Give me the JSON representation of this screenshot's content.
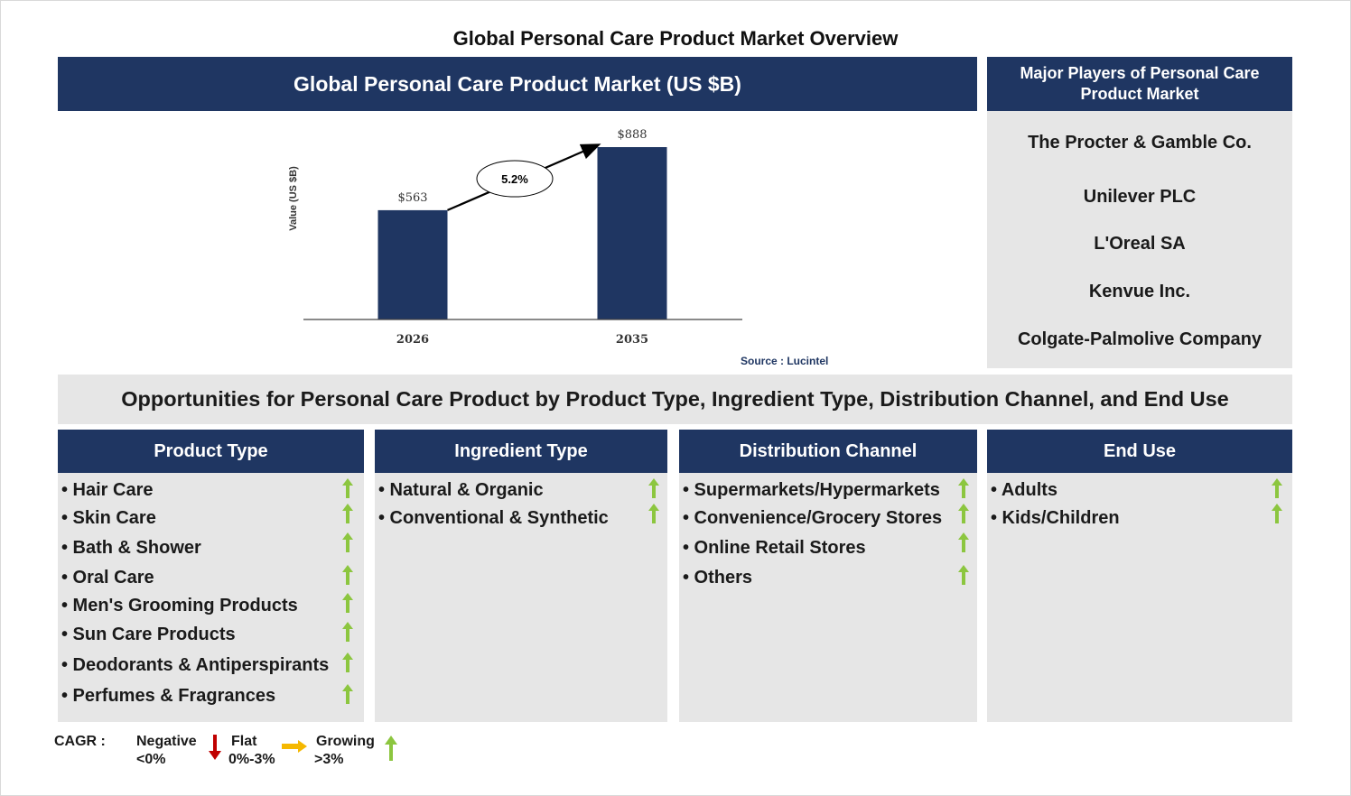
{
  "title": "Global Personal Care Product Market Overview",
  "chart_header": "Global Personal Care Product Market (US $B)",
  "chart_data": {
    "type": "bar",
    "categories": [
      "2026",
      "2035"
    ],
    "values": [
      563,
      888
    ],
    "value_labels": [
      "$563",
      "$888"
    ],
    "ylabel": "Value (US $B)",
    "cagr_label": "5.2%",
    "bar_color": "#1f3662",
    "source": "Source : Lucintel"
  },
  "players": {
    "header": "Major Players of Personal Care Product Market",
    "items": [
      "The Procter & Gamble Co.",
      "Unilever PLC",
      "L'Oreal SA",
      "Kenvue Inc.",
      "Colgate-Palmolive Company"
    ]
  },
  "opportunities_title": "Opportunities for Personal Care Product by Product Type, Ingredient Type, Distribution Channel, and End Use",
  "segments": [
    {
      "header": "Product Type",
      "items": [
        "• Hair Care",
        "• Skin Care",
        "• Bath & Shower",
        "• Oral Care",
        "• Men's Grooming Products",
        "• Sun Care Products",
        "• Deodorants & Antiperspirants",
        "• Perfumes & Fragrances"
      ]
    },
    {
      "header": "Ingredient Type",
      "items": [
        "• Natural & Organic",
        "• Conventional & Synthetic"
      ]
    },
    {
      "header": "Distribution Channel",
      "items": [
        "• Supermarkets/Hypermarkets",
        "• Convenience/Grocery Stores",
        "• Online Retail Stores",
        "• Others"
      ]
    },
    {
      "header": "End Use",
      "items": [
        "• Adults",
        "• Kids/Children"
      ]
    }
  ],
  "legend": {
    "cagr": "CAGR :",
    "negative": "Negative",
    "negative_range": "<0%",
    "flat": "Flat",
    "flat_range": "0%-3%",
    "growing": "Growing",
    "growing_range": ">3%"
  },
  "colors": {
    "navy": "#1f3662",
    "panel_grey": "#e6e6e6",
    "growing": "#8cc63f",
    "flat": "#f5b800",
    "negative": "#c00000"
  }
}
